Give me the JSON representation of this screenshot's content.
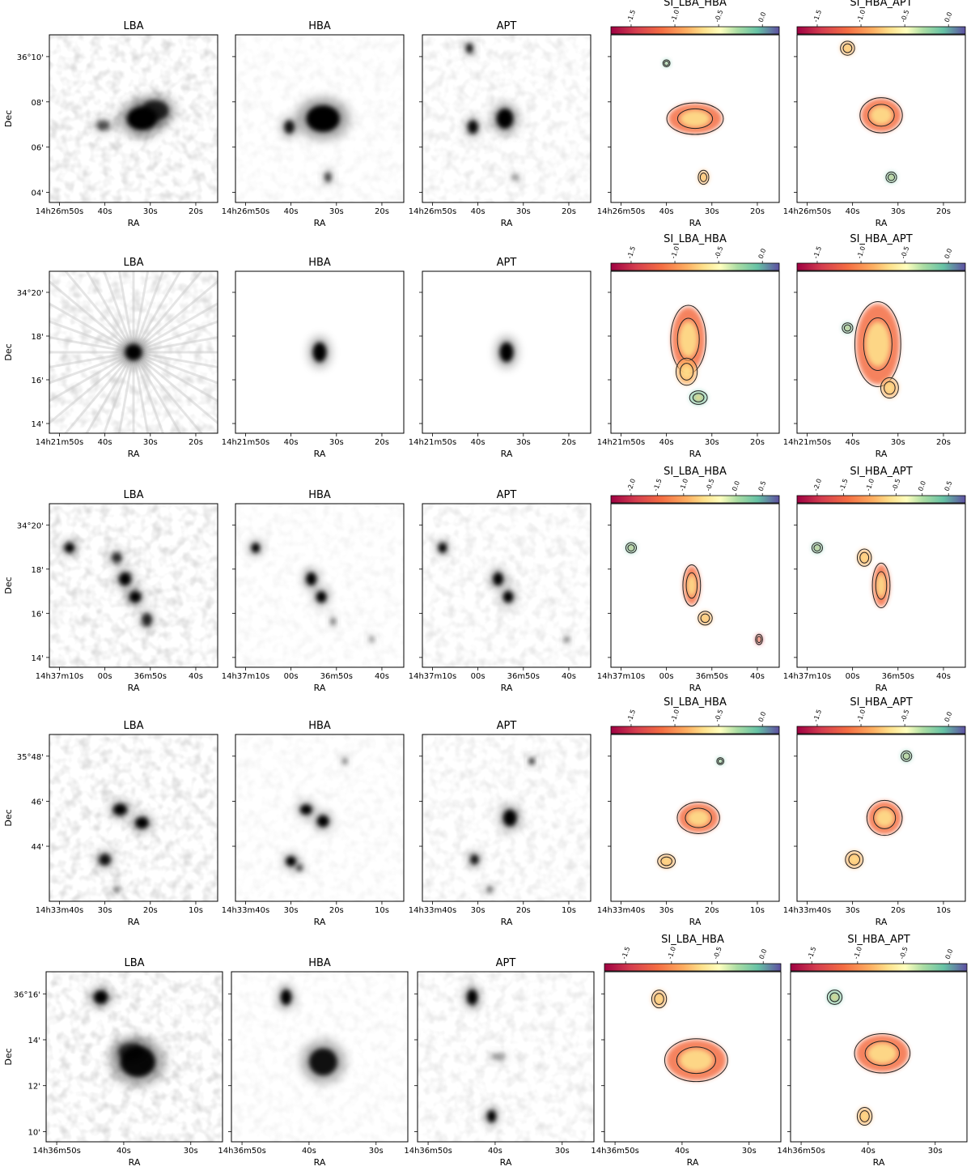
{
  "rows": [
    {
      "ra_ticks": [
        "14h26m50s",
        "40s",
        "30s",
        "20s"
      ],
      "dec_ticks": [
        "36°10'",
        "08'",
        "06'",
        "04'"
      ],
      "cb_ticks_1": [
        "-1.5",
        "-1.0",
        "-0.5",
        "0.0"
      ],
      "cb_ticks_2": [
        "-1.5",
        "-1.0",
        "-0.5",
        "0.0"
      ],
      "sources_lba": [
        [
          0.55,
          0.5,
          0.09,
          0.07,
          1
        ],
        [
          0.63,
          0.45,
          0.08,
          0.06,
          0.8
        ],
        [
          0.32,
          0.54,
          0.04,
          0.03,
          0.6
        ]
      ],
      "sources_hba": [
        [
          0.52,
          0.5,
          0.1,
          0.08,
          1
        ],
        [
          0.32,
          0.55,
          0.03,
          0.04,
          0.9
        ],
        [
          0.55,
          0.85,
          0.02,
          0.03,
          0.7
        ]
      ],
      "sources_apt": [
        [
          0.49,
          0.5,
          0.05,
          0.06,
          1
        ],
        [
          0.3,
          0.55,
          0.03,
          0.04,
          0.95
        ],
        [
          0.28,
          0.08,
          0.02,
          0.03,
          0.9
        ],
        [
          0.55,
          0.85,
          0.02,
          0.02,
          0.4
        ]
      ],
      "si1_blobs": [
        [
          0.5,
          0.5,
          0.16,
          0.09
        ],
        [
          0.55,
          0.85,
          0.03,
          0.04
        ],
        [
          0.33,
          0.17,
          0.02,
          0.02
        ]
      ],
      "si2_blobs": [
        [
          0.5,
          0.48,
          0.12,
          0.1
        ],
        [
          0.3,
          0.08,
          0.04,
          0.04
        ],
        [
          0.56,
          0.85,
          0.03,
          0.03
        ]
      ]
    },
    {
      "ra_ticks": [
        "14h21m50s",
        "40s",
        "30s",
        "20s"
      ],
      "dec_ticks": [
        "34°20'",
        "18'",
        "16'",
        "14'"
      ],
      "cb_ticks_1": [
        "-1.5",
        "-1.0",
        "-0.5",
        "0.0"
      ],
      "cb_ticks_2": [
        "-1.5",
        "-1.0",
        "-0.5",
        "0.0"
      ],
      "sources_lba": [
        [
          0.5,
          0.5,
          0.05,
          0.05,
          1
        ]
      ],
      "sources_hba": [
        [
          0.5,
          0.5,
          0.04,
          0.06,
          1
        ]
      ],
      "sources_apt": [
        [
          0.5,
          0.5,
          0.04,
          0.06,
          1
        ]
      ],
      "si1_blobs": [
        [
          0.46,
          0.42,
          0.1,
          0.2
        ],
        [
          0.45,
          0.62,
          0.06,
          0.08
        ],
        [
          0.52,
          0.78,
          0.05,
          0.04
        ]
      ],
      "si2_blobs": [
        [
          0.48,
          0.45,
          0.13,
          0.25
        ],
        [
          0.55,
          0.72,
          0.05,
          0.06
        ],
        [
          0.3,
          0.35,
          0.03,
          0.03
        ]
      ]
    },
    {
      "ra_ticks": [
        "14h37m10s",
        "00s",
        "36m50s",
        "40s"
      ],
      "dec_ticks": [
        "34°20'",
        "18'",
        "16'",
        "14'"
      ],
      "cb_ticks_1": [
        "-2.0",
        "-1.5",
        "-1.0",
        "-0.5",
        "0.0",
        "0.5"
      ],
      "cb_ticks_2": [
        "-2.0",
        "-1.5",
        "-1.0",
        "-0.5",
        "0.0",
        "0.5"
      ],
      "sources_lba": [
        [
          0.12,
          0.27,
          0.03,
          0.03,
          1
        ],
        [
          0.4,
          0.33,
          0.03,
          0.03,
          0.8
        ],
        [
          0.45,
          0.46,
          0.035,
          0.04,
          1
        ],
        [
          0.51,
          0.57,
          0.035,
          0.035,
          1
        ],
        [
          0.58,
          0.71,
          0.03,
          0.04,
          0.8
        ]
      ],
      "sources_hba": [
        [
          0.12,
          0.27,
          0.025,
          0.03,
          1
        ],
        [
          0.45,
          0.46,
          0.03,
          0.04,
          1
        ],
        [
          0.51,
          0.57,
          0.03,
          0.035,
          1
        ],
        [
          0.58,
          0.72,
          0.015,
          0.025,
          0.5
        ],
        [
          0.81,
          0.83,
          0.015,
          0.02,
          0.4
        ]
      ],
      "sources_apt": [
        [
          0.12,
          0.27,
          0.025,
          0.03,
          1
        ],
        [
          0.45,
          0.46,
          0.03,
          0.04,
          1
        ],
        [
          0.51,
          0.57,
          0.03,
          0.035,
          1
        ],
        [
          0.86,
          0.83,
          0.015,
          0.02,
          0.5
        ]
      ],
      "si1_blobs": [
        [
          0.48,
          0.5,
          0.05,
          0.12
        ],
        [
          0.56,
          0.7,
          0.04,
          0.04
        ],
        [
          0.12,
          0.27,
          0.03,
          0.03
        ],
        [
          0.88,
          0.83,
          0.02,
          0.03
        ]
      ],
      "si2_blobs": [
        [
          0.5,
          0.5,
          0.05,
          0.13
        ],
        [
          0.4,
          0.33,
          0.04,
          0.05
        ],
        [
          0.12,
          0.27,
          0.03,
          0.03
        ]
      ]
    },
    {
      "ra_ticks": [
        "14h33m40s",
        "30s",
        "20s",
        "10s"
      ],
      "dec_ticks": [
        "35°48'",
        "46'",
        "44'"
      ],
      "cb_ticks_1": [
        "-1.5",
        "-1.0",
        "-0.5",
        "0.0"
      ],
      "cb_ticks_2": [
        "-1.5",
        "-1.0",
        "-0.5",
        "0.0"
      ],
      "sources_lba": [
        [
          0.42,
          0.45,
          0.04,
          0.035,
          1
        ],
        [
          0.55,
          0.53,
          0.04,
          0.035,
          1
        ],
        [
          0.33,
          0.75,
          0.035,
          0.035,
          0.9
        ],
        [
          0.4,
          0.93,
          0.02,
          0.02,
          0.5
        ]
      ],
      "sources_hba": [
        [
          0.42,
          0.45,
          0.035,
          0.03,
          1
        ],
        [
          0.52,
          0.52,
          0.035,
          0.035,
          1
        ],
        [
          0.33,
          0.76,
          0.03,
          0.03,
          1
        ],
        [
          0.38,
          0.8,
          0.02,
          0.02,
          0.7
        ],
        [
          0.65,
          0.16,
          0.015,
          0.02,
          0.5
        ]
      ],
      "sources_apt": [
        [
          0.52,
          0.5,
          0.04,
          0.05,
          1
        ],
        [
          0.31,
          0.75,
          0.025,
          0.03,
          0.9
        ],
        [
          0.65,
          0.16,
          0.015,
          0.02,
          0.9
        ],
        [
          0.4,
          0.93,
          0.02,
          0.02,
          0.5
        ]
      ],
      "si1_blobs": [
        [
          0.52,
          0.5,
          0.12,
          0.09
        ],
        [
          0.33,
          0.76,
          0.05,
          0.04
        ],
        [
          0.65,
          0.16,
          0.02,
          0.02
        ]
      ],
      "si2_blobs": [
        [
          0.52,
          0.5,
          0.1,
          0.1
        ],
        [
          0.34,
          0.75,
          0.05,
          0.05
        ],
        [
          0.65,
          0.13,
          0.03,
          0.03
        ]
      ]
    },
    {
      "ra_ticks": [
        "14h36m50s",
        "40s",
        "30s"
      ],
      "dec_ticks": [
        "36°16'",
        "14'",
        "12'",
        "10'"
      ],
      "cb_ticks_1": [
        "-1.5",
        "-1.0",
        "-0.5",
        "0.0"
      ],
      "cb_ticks_2": [
        "-1.5",
        "-1.0",
        "-0.5",
        "0.0"
      ],
      "sources_lba": [
        [
          0.31,
          0.15,
          0.04,
          0.04,
          1
        ],
        [
          0.52,
          0.53,
          0.1,
          0.09,
          0.95
        ],
        [
          0.48,
          0.47,
          0.07,
          0.05,
          0.7
        ]
      ],
      "sources_hba": [
        [
          0.31,
          0.15,
          0.03,
          0.045,
          1
        ],
        [
          0.52,
          0.53,
          0.08,
          0.08,
          0.9
        ]
      ],
      "sources_apt": [
        [
          0.31,
          0.15,
          0.03,
          0.045,
          1
        ],
        [
          0.42,
          0.85,
          0.025,
          0.035,
          1
        ],
        [
          0.46,
          0.5,
          0.04,
          0.02,
          0.3
        ]
      ],
      "si1_blobs": [
        [
          0.52,
          0.52,
          0.17,
          0.12
        ],
        [
          0.31,
          0.16,
          0.04,
          0.05
        ]
      ],
      "si2_blobs": [
        [
          0.52,
          0.48,
          0.15,
          0.11
        ],
        [
          0.42,
          0.85,
          0.04,
          0.05
        ],
        [
          0.25,
          0.15,
          0.04,
          0.04
        ]
      ]
    }
  ],
  "labels": {
    "lba": "LBA",
    "hba": "HBA",
    "apt": "APT",
    "si1": "SI_LBA_HBA",
    "si2": "SI_HBA_APT",
    "ra": "RA",
    "dec": "Dec"
  }
}
